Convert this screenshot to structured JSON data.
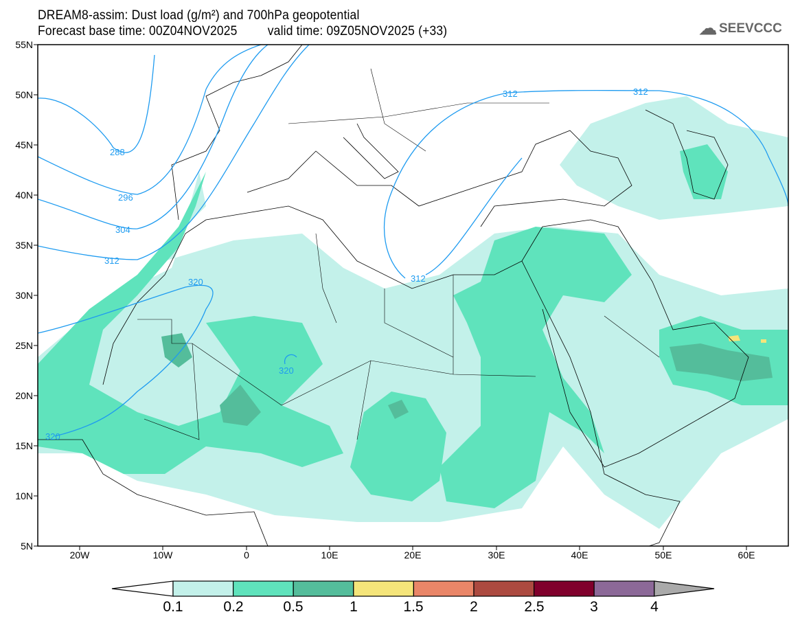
{
  "header": {
    "title": "DREAM8-assim: Dust load (g/m²) and 700hPa geopotential",
    "subtitle_base": "Forecast base time: 00Z04NOV2025",
    "subtitle_valid": "valid time: 09Z05NOV2025 (+33)"
  },
  "logo": {
    "text": "SEEVCCC",
    "icon": "cloud-icon"
  },
  "axes": {
    "lat_labels": [
      "55N",
      "50N",
      "45N",
      "40N",
      "35N",
      "30N",
      "25N",
      "20N",
      "15N",
      "10N",
      "5N"
    ],
    "lon_labels": [
      "20W",
      "10W",
      "0",
      "10E",
      "20E",
      "30E",
      "40E",
      "50E",
      "60E"
    ],
    "lon_range": [
      -25,
      65
    ],
    "lat_range": [
      5,
      55
    ]
  },
  "contour_labels": [
    "288",
    "296",
    "304",
    "312",
    "320",
    "312",
    "312",
    "312",
    "320",
    "320"
  ],
  "colorbar": {
    "ticks": [
      "0.1",
      "0.2",
      "0.5",
      "1",
      "1.5",
      "2",
      "2.5",
      "3",
      "4"
    ],
    "colors": [
      "#ffffff",
      "#c3f1ea",
      "#5fe3bc",
      "#54bd9b",
      "#f5e57a",
      "#ea8668",
      "#ac4a40",
      "#80002c",
      "#8c6998",
      "#aaaaaa"
    ]
  }
}
